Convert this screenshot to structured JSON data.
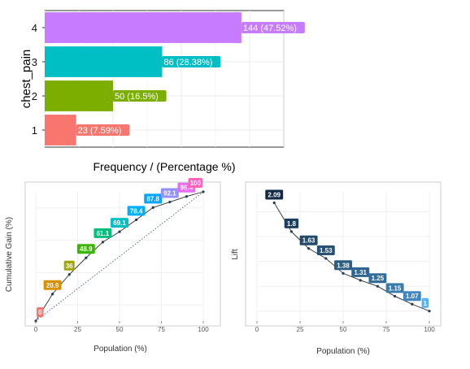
{
  "chart_data": [
    {
      "type": "bar",
      "orientation": "horizontal",
      "ylabel": "chest_pain",
      "xlabel": "Frequency / (Percentage %)",
      "categories": [
        "1",
        "2",
        "3",
        "4"
      ],
      "values": [
        23,
        50,
        86,
        144
      ],
      "labels": [
        "23 (7.59%)",
        "50 (16.5%)",
        "86 (28.38%)",
        "144 (47.52%)"
      ],
      "colors": [
        "#f8766d",
        "#7cae00",
        "#00bfc4",
        "#c77cff"
      ],
      "xlim": [
        0,
        175
      ]
    },
    {
      "type": "line",
      "xlabel": "Population (%)",
      "ylabel": "Cumulative Gain (%)",
      "x": [
        0,
        10,
        20,
        30,
        40,
        50,
        60,
        70,
        80,
        90,
        100
      ],
      "y": [
        0,
        20.9,
        36,
        48.9,
        61.1,
        69.1,
        78.4,
        87.8,
        92.1,
        96.4,
        100
      ],
      "labels": [
        "0",
        "20.9",
        "36",
        "48.9",
        "61.1",
        "69.1",
        "78.4",
        "87.8",
        "92.1",
        "96.4",
        "100"
      ],
      "label_colors": [
        "#f8766d",
        "#d89000",
        "#a3a500",
        "#39b600",
        "#00bf7d",
        "#00bfc4",
        "#00b0f6",
        "#00a5ff",
        "#9590ff",
        "#e76bf3",
        "#ff62bc"
      ],
      "xticks": [
        "0",
        "25",
        "50",
        "75",
        "100"
      ],
      "xlim": [
        0,
        100
      ],
      "ylim": [
        0,
        100
      ],
      "reference_line": {
        "x": [
          0,
          100
        ],
        "y": [
          0,
          100
        ]
      }
    },
    {
      "type": "line",
      "xlabel": "Population (%)",
      "ylabel": "Lift",
      "x": [
        10,
        20,
        30,
        40,
        50,
        60,
        70,
        80,
        90,
        100
      ],
      "y": [
        2.09,
        1.8,
        1.63,
        1.53,
        1.38,
        1.31,
        1.25,
        1.15,
        1.07,
        1
      ],
      "labels": [
        "2.09",
        "1.8",
        "1.63",
        "1.53",
        "1.38",
        "1.31",
        "1.25",
        "1.15",
        "1.07",
        "1"
      ],
      "label_colors": [
        "#132b43",
        "#1d3f5f",
        "#23496b",
        "#275275",
        "#2c5d83",
        "#2f6590",
        "#336d9a",
        "#3a7bad",
        "#4186be",
        "#56b1f7"
      ],
      "xticks": [
        "0",
        "25",
        "50",
        "75",
        "100"
      ],
      "xlim": [
        0,
        100
      ],
      "ylim": [
        0.9,
        2.2
      ]
    }
  ]
}
